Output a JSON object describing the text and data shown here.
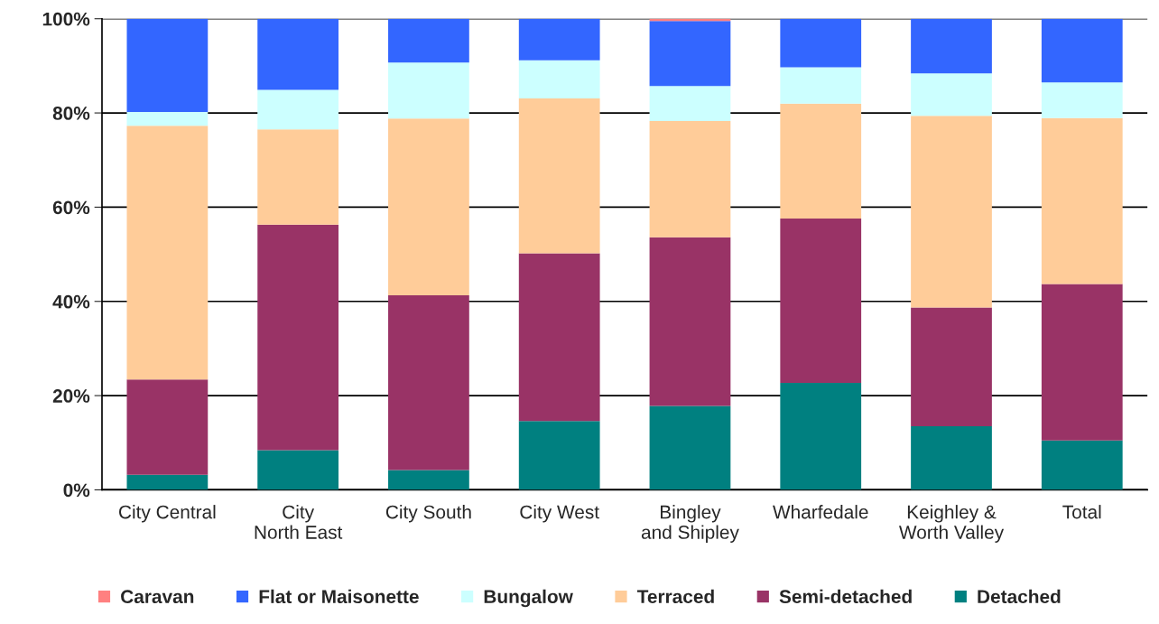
{
  "chart_data": {
    "type": "bar",
    "stacked": true,
    "categories": [
      "City Central",
      "City North East",
      "City South",
      "City West",
      "Bingley and Shipley",
      "Wharfedale",
      "Keighley & Worth Valley",
      "Total"
    ],
    "series": [
      {
        "name": "Detached",
        "color": "#008080",
        "values": [
          3.2,
          8.4,
          4.2,
          14.6,
          17.8,
          22.7,
          13.5,
          10.5
        ]
      },
      {
        "name": "Semi-detached",
        "color": "#993366",
        "values": [
          20.2,
          47.9,
          37.1,
          35.6,
          35.8,
          34.9,
          25.2,
          33.2
        ]
      },
      {
        "name": "Terraced",
        "color": "#ffcc99",
        "values": [
          53.9,
          20.2,
          37.5,
          32.9,
          24.7,
          24.4,
          40.7,
          35.2
        ]
      },
      {
        "name": "Bungalow",
        "color": "#ccffff",
        "values": [
          2.9,
          8.4,
          11.9,
          8.1,
          7.4,
          7.7,
          9.0,
          7.6
        ]
      },
      {
        "name": "Flat or Maisonette",
        "color": "#3366ff",
        "values": [
          19.8,
          15.1,
          9.3,
          8.8,
          13.8,
          10.3,
          11.6,
          13.5
        ]
      },
      {
        "name": "Caravan",
        "color": "#ff8080",
        "values": [
          null,
          null,
          null,
          null,
          0.5,
          null,
          null,
          null
        ]
      }
    ],
    "ylim": [
      0,
      100
    ],
    "yticks": [
      {
        "value": 0,
        "label": "0%"
      },
      {
        "value": 20,
        "label": "20%"
      },
      {
        "value": 40,
        "label": "40%"
      },
      {
        "value": 60,
        "label": "60%"
      },
      {
        "value": 80,
        "label": "80%"
      },
      {
        "value": 100,
        "label": "100%"
      }
    ],
    "grid": "y",
    "legend": "bottom"
  }
}
